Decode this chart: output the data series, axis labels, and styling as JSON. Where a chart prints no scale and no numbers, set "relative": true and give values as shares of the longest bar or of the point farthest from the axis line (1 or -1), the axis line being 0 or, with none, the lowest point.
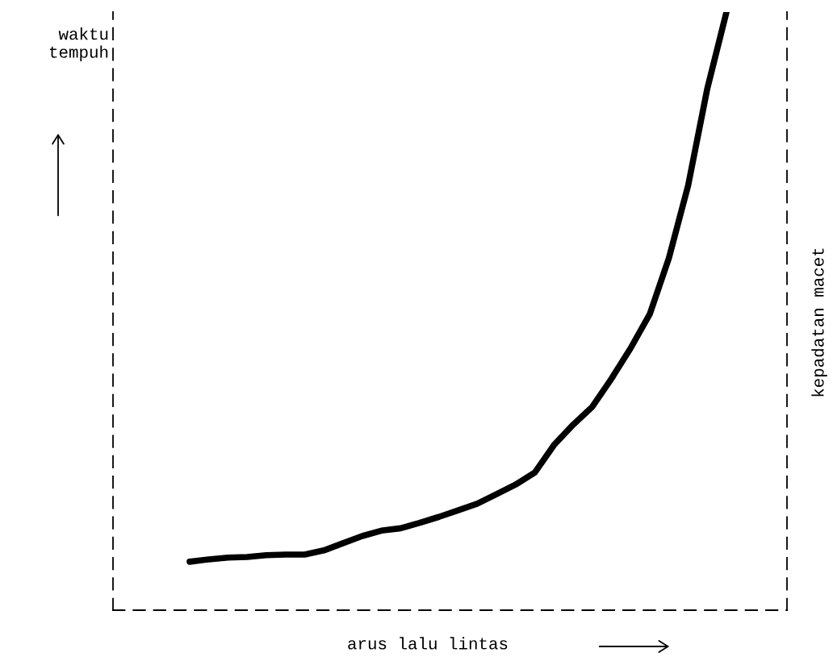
{
  "chart_data": {
    "type": "line",
    "relative": true,
    "xlabel": "arus lalu lintas",
    "ylabel": "waktu tempuh",
    "y2label": "kepadatan macet",
    "categories": [
      null,
      null,
      null,
      null,
      null,
      null,
      null,
      null,
      null,
      null,
      null,
      null,
      null,
      null,
      null,
      null,
      null,
      null,
      null,
      null,
      null,
      null,
      null,
      null,
      null,
      null,
      null,
      null,
      null
    ],
    "series": [
      {
        "color": "#000000",
        "values": [
          0.081,
          0.085,
          0.088,
          0.089,
          0.092,
          0.093,
          0.093,
          0.1,
          0.112,
          0.124,
          0.133,
          0.137,
          0.146,
          0.156,
          0.167,
          0.178,
          0.194,
          0.21,
          0.23,
          0.276,
          0.31,
          0.34,
          0.387,
          0.438,
          0.495,
          0.589,
          0.71,
          0.872,
          1.0
        ]
      }
    ],
    "marker": "none",
    "line_style": "solid"
  }
}
